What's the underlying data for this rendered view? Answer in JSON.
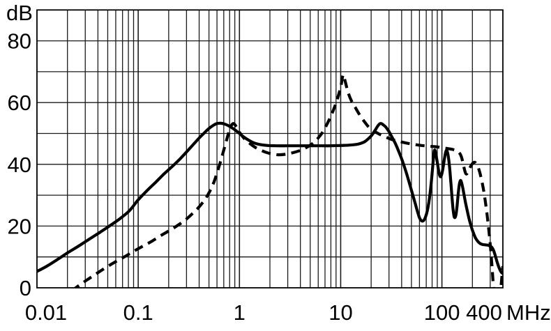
{
  "chart_data": {
    "type": "line",
    "title": "",
    "y_unit_label": "dB",
    "x_unit_label": "MHz",
    "x_scale": "log",
    "xlim": [
      0.01,
      400
    ],
    "ylim": [
      0,
      90
    ],
    "y_grid_step_db": 10,
    "grid": "log minor verticals per decade, horizontal line every 10 dB",
    "legend_position": "none",
    "x_tick_labels": [
      "0.01",
      "0.1",
      "1",
      "10",
      "100",
      "400"
    ],
    "x_tick_values": [
      0.01,
      0.1,
      1,
      10,
      100,
      400
    ],
    "y_tick_labels": [
      "80",
      "60",
      "40",
      "20",
      "0"
    ],
    "y_tick_values": [
      80,
      60,
      40,
      20,
      0
    ],
    "colors": {
      "curves": "#000000",
      "grid": "#1a1a1a",
      "frame": "#000000",
      "background": "#ffffff"
    },
    "series": [
      {
        "name": "solid-curve",
        "line_style": "solid",
        "points": [
          [
            0.01,
            5.3
          ],
          [
            0.0125,
            7
          ],
          [
            0.016,
            9.2
          ],
          [
            0.02,
            11.3
          ],
          [
            0.026,
            13.6
          ],
          [
            0.033,
            15.8
          ],
          [
            0.042,
            18
          ],
          [
            0.053,
            20.2
          ],
          [
            0.066,
            22.4
          ],
          [
            0.082,
            25
          ],
          [
            0.1,
            28.5
          ],
          [
            0.125,
            31.8
          ],
          [
            0.15,
            34.3
          ],
          [
            0.18,
            36.9
          ],
          [
            0.22,
            39.5
          ],
          [
            0.26,
            41.8
          ],
          [
            0.3,
            44
          ],
          [
            0.35,
            46.4
          ],
          [
            0.4,
            48.5
          ],
          [
            0.45,
            50.2
          ],
          [
            0.5,
            51.6
          ],
          [
            0.55,
            52.6
          ],
          [
            0.6,
            53.2
          ],
          [
            0.66,
            53.3
          ],
          [
            0.72,
            53
          ],
          [
            0.8,
            52.3
          ],
          [
            0.9,
            51.2
          ],
          [
            1,
            50
          ],
          [
            1.1,
            48.9
          ],
          [
            1.25,
            47.7
          ],
          [
            1.4,
            46.9
          ],
          [
            1.6,
            46.4
          ],
          [
            1.9,
            46.1
          ],
          [
            2.3,
            46
          ],
          [
            3,
            46
          ],
          [
            4,
            46
          ],
          [
            5,
            46
          ],
          [
            6.5,
            46
          ],
          [
            8,
            46
          ],
          [
            10,
            46.1
          ],
          [
            12,
            46.2
          ],
          [
            14,
            46.4
          ],
          [
            15.5,
            46.7
          ],
          [
            17,
            47.2
          ],
          [
            18.5,
            48.1
          ],
          [
            20,
            49.2
          ],
          [
            21.5,
            50.6
          ],
          [
            23,
            52.2
          ],
          [
            24.2,
            53.1
          ],
          [
            25.2,
            53.2
          ],
          [
            26.3,
            52.8
          ],
          [
            28,
            52
          ],
          [
            30,
            50.6
          ],
          [
            32,
            48.9
          ],
          [
            34.5,
            46.9
          ],
          [
            37,
            44.6
          ],
          [
            40,
            41.8
          ],
          [
            43,
            38.8
          ],
          [
            46.5,
            35.2
          ],
          [
            50,
            31.6
          ],
          [
            53.5,
            28.2
          ],
          [
            57,
            25
          ],
          [
            60,
            22.7
          ],
          [
            63,
            21.7
          ],
          [
            66,
            21.8
          ],
          [
            69,
            23
          ],
          [
            72,
            25.2
          ],
          [
            75,
            28.6
          ],
          [
            78,
            33.2
          ],
          [
            80.5,
            38
          ],
          [
            82.5,
            42
          ],
          [
            84,
            44.3
          ],
          [
            85.5,
            44.5
          ],
          [
            87.5,
            43
          ],
          [
            90,
            40.6
          ],
          [
            92.5,
            38.2
          ],
          [
            95,
            36.4
          ],
          [
            97.5,
            36
          ],
          [
            100,
            37
          ],
          [
            103,
            39.3
          ],
          [
            106,
            41.9
          ],
          [
            109,
            44
          ],
          [
            111.5,
            44.5
          ],
          [
            114,
            43.6
          ],
          [
            117,
            41.3
          ],
          [
            120,
            37.8
          ],
          [
            123,
            33.4
          ],
          [
            126,
            28.9
          ],
          [
            129,
            25.2
          ],
          [
            132,
            23.1
          ],
          [
            135,
            22.8
          ],
          [
            138,
            23.9
          ],
          [
            141,
            26.4
          ],
          [
            144,
            29.6
          ],
          [
            147,
            32.4
          ],
          [
            150,
            34.2
          ],
          [
            153,
            34.8
          ],
          [
            156,
            34.2
          ],
          [
            160,
            32.7
          ],
          [
            165,
            30.3
          ],
          [
            171,
            27.6
          ],
          [
            178,
            24.9
          ],
          [
            186,
            22.2
          ],
          [
            195,
            19.8
          ],
          [
            205,
            17.7
          ],
          [
            215,
            16.1
          ],
          [
            227,
            15
          ],
          [
            240,
            14.3
          ],
          [
            255,
            14
          ],
          [
            270,
            13.9
          ],
          [
            285,
            13.8
          ],
          [
            300,
            13.5
          ],
          [
            312,
            13.1
          ],
          [
            324,
            12.1
          ],
          [
            336,
            10.5
          ],
          [
            349,
            8.6
          ],
          [
            362,
            7
          ],
          [
            375,
            5.8
          ],
          [
            387,
            5
          ],
          [
            400,
            4.6
          ]
        ]
      },
      {
        "name": "dashed-curve",
        "line_style": "dashed",
        "points": [
          [
            0.022,
            -1
          ],
          [
            0.028,
            1.5
          ],
          [
            0.036,
            3.9
          ],
          [
            0.046,
            6.2
          ],
          [
            0.058,
            8.2
          ],
          [
            0.072,
            9.9
          ],
          [
            0.09,
            11.8
          ],
          [
            0.11,
            13.4
          ],
          [
            0.135,
            15
          ],
          [
            0.165,
            16.8
          ],
          [
            0.2,
            18.4
          ],
          [
            0.24,
            20
          ],
          [
            0.29,
            21.9
          ],
          [
            0.34,
            23.9
          ],
          [
            0.4,
            26.2
          ],
          [
            0.46,
            28.8
          ],
          [
            0.51,
            31.3
          ],
          [
            0.56,
            34.3
          ],
          [
            0.61,
            37.9
          ],
          [
            0.66,
            41.6
          ],
          [
            0.71,
            45.3
          ],
          [
            0.76,
            48.8
          ],
          [
            0.8,
            51.2
          ],
          [
            0.84,
            52.8
          ],
          [
            0.88,
            53.2
          ],
          [
            0.93,
            52.2
          ],
          [
            1,
            50.4
          ],
          [
            1.1,
            48.6
          ],
          [
            1.25,
            46.9
          ],
          [
            1.45,
            45.4
          ],
          [
            1.7,
            44.3
          ],
          [
            2,
            43.5
          ],
          [
            2.4,
            43.1
          ],
          [
            2.9,
            43.3
          ],
          [
            3.5,
            43.9
          ],
          [
            4.2,
            44.8
          ],
          [
            5,
            46.2
          ],
          [
            5.6,
            47.5
          ],
          [
            6.2,
            49.1
          ],
          [
            6.8,
            51
          ],
          [
            7.4,
            53.3
          ],
          [
            8.1,
            56
          ],
          [
            8.8,
            59
          ],
          [
            9.5,
            62.3
          ],
          [
            10.1,
            65.7
          ],
          [
            10.6,
            69
          ],
          [
            11.1,
            66.8
          ],
          [
            11.8,
            63.4
          ],
          [
            12.8,
            60.5
          ],
          [
            14,
            58.3
          ],
          [
            15.2,
            56.3
          ],
          [
            17,
            54
          ],
          [
            19,
            52
          ],
          [
            21,
            50.9
          ],
          [
            24,
            49.8
          ],
          [
            28,
            48.8
          ],
          [
            33,
            47.9
          ],
          [
            39,
            47.3
          ],
          [
            46,
            46.8
          ],
          [
            54,
            46.4
          ],
          [
            63,
            46.1
          ],
          [
            74,
            45.9
          ],
          [
            86,
            45.7
          ],
          [
            100,
            45.4
          ],
          [
            114,
            45.1
          ],
          [
            128,
            44.8
          ],
          [
            140,
            44.4
          ],
          [
            149,
            43.7
          ],
          [
            156,
            42.4
          ],
          [
            162,
            40.2
          ],
          [
            168,
            38
          ],
          [
            173,
            36.9
          ],
          [
            179,
            37.2
          ],
          [
            187,
            38.5
          ],
          [
            196,
            39.8
          ],
          [
            206,
            40.6
          ],
          [
            215,
            40.5
          ],
          [
            225,
            39.5
          ],
          [
            235,
            37.7
          ],
          [
            245,
            35.3
          ],
          [
            256,
            32.2
          ],
          [
            267,
            28.5
          ],
          [
            278,
            24.2
          ],
          [
            289,
            19.4
          ],
          [
            299,
            14.5
          ],
          [
            309,
            9
          ],
          [
            318,
            3.4
          ],
          [
            326,
            -2
          ],
          [
            333,
            -6
          ],
          [
            350,
            -9
          ],
          [
            366,
            -6
          ],
          [
            376,
            -2.3
          ],
          [
            386,
            1.6
          ],
          [
            394,
            4.7
          ],
          [
            400,
            7
          ]
        ]
      }
    ]
  }
}
